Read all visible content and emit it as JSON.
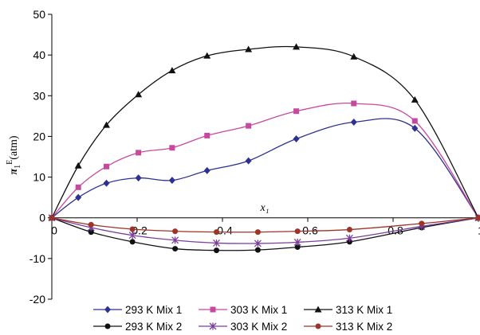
{
  "chart_data": {
    "type": "line",
    "xlabel": "x₁",
    "ylabel": "π₁ᴱ(atm)",
    "ylabel_parts": {
      "symbol": "π",
      "sub": "1",
      "sup": "E",
      "unit": "(atm)"
    },
    "xlim": [
      0,
      1
    ],
    "ylim": [
      -20,
      50
    ],
    "x_ticks": [
      "0",
      "0.2",
      "0.4",
      "0.6",
      "0.8",
      "1"
    ],
    "y_ticks": [
      "-20",
      "-10",
      "0",
      "10",
      "20",
      "30",
      "40",
      "50"
    ],
    "legend_position": "bottom",
    "grid": false,
    "series": [
      {
        "name": "293 K Mix 1",
        "color": "#2e3192",
        "marker": "diamond",
        "x": [
          0,
          0.062,
          0.128,
          0.203,
          0.282,
          0.364,
          0.461,
          0.573,
          0.708,
          0.851,
          1
        ],
        "y": [
          0,
          5.0,
          8.5,
          9.8,
          9.2,
          11.6,
          14.0,
          19.4,
          23.5,
          22.0,
          0
        ]
      },
      {
        "name": "303 K Mix 1",
        "color": "#c7499e",
        "marker": "square",
        "x": [
          0,
          0.062,
          0.128,
          0.203,
          0.282,
          0.364,
          0.461,
          0.573,
          0.708,
          0.851,
          1
        ],
        "y": [
          0,
          7.5,
          12.6,
          16.0,
          17.2,
          20.2,
          22.6,
          26.2,
          28.1,
          23.8,
          0
        ]
      },
      {
        "name": "313 K Mix 1",
        "color": "#111111",
        "marker": "triangle",
        "x": [
          0,
          0.062,
          0.128,
          0.203,
          0.282,
          0.364,
          0.461,
          0.573,
          0.708,
          0.851,
          1
        ],
        "y": [
          0,
          12.8,
          22.8,
          30.3,
          36.2,
          39.8,
          41.4,
          42.0,
          39.6,
          29.0,
          0
        ]
      },
      {
        "name": "293 K Mix 2",
        "color": "#111111",
        "marker": "circle",
        "x": [
          0,
          0.092,
          0.189,
          0.289,
          0.386,
          0.483,
          0.576,
          0.698,
          0.867,
          1
        ],
        "y": [
          0,
          -3.5,
          -5.9,
          -7.6,
          -8.0,
          -7.9,
          -7.2,
          -5.9,
          -2.4,
          0
        ]
      },
      {
        "name": "303 K Mix 2",
        "color": "#7b3f9e",
        "marker": "star",
        "x": [
          0,
          0.092,
          0.189,
          0.289,
          0.386,
          0.483,
          0.576,
          0.698,
          0.867,
          1
        ],
        "y": [
          0,
          -2.4,
          -4.3,
          -5.5,
          -6.2,
          -6.3,
          -6.0,
          -5.0,
          -2.1,
          0
        ]
      },
      {
        "name": "313 K Mix 2",
        "color": "#9e3327",
        "marker": "circle",
        "x": [
          0,
          0.092,
          0.189,
          0.289,
          0.386,
          0.483,
          0.576,
          0.698,
          0.867,
          1
        ],
        "y": [
          0,
          -1.7,
          -2.8,
          -3.3,
          -3.5,
          -3.5,
          -3.3,
          -2.9,
          -1.4,
          0
        ]
      }
    ]
  }
}
